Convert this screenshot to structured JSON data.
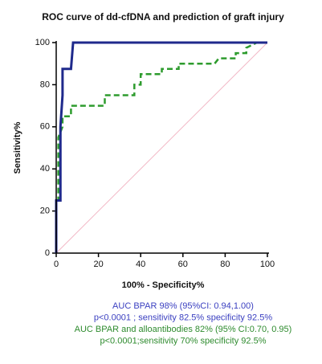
{
  "chart_data": {
    "type": "line",
    "title": "ROC curve of dd-cfDNA and prediction of graft injury",
    "xlabel": "100% - Specificity%",
    "ylabel": "Sensitivity%",
    "xlim": [
      0,
      100
    ],
    "ylim": [
      0,
      100
    ],
    "xticks": [
      0,
      20,
      40,
      60,
      80,
      100
    ],
    "yticks": [
      0,
      20,
      40,
      60,
      80,
      100
    ],
    "series": [
      {
        "color": "#f2b8c6",
        "dash": false,
        "width": 1,
        "x": [
          0,
          100
        ],
        "values": [
          0,
          100
        ]
      },
      {
        "color": "#2e9c2e",
        "dash": true,
        "width": 2.5,
        "x": [
          0,
          0,
          1,
          1,
          3,
          3,
          7,
          7,
          23,
          23,
          37,
          37,
          40,
          40,
          50,
          50,
          58,
          58,
          75,
          77,
          85,
          85,
          90,
          90,
          95,
          100
        ],
        "values": [
          0,
          25,
          25,
          55,
          60,
          65,
          65,
          70,
          70,
          75,
          75,
          80,
          80,
          85,
          85,
          87.5,
          87.5,
          90,
          90,
          92.5,
          92.5,
          95,
          95,
          97.5,
          100,
          100
        ]
      },
      {
        "color": "#1f2a8c",
        "dash": false,
        "width": 3,
        "x": [
          0,
          0,
          2,
          2,
          3,
          3,
          7,
          8,
          100
        ],
        "values": [
          0,
          25,
          25,
          60,
          75,
          87.5,
          87.5,
          100,
          100
        ]
      }
    ],
    "annotations": [
      {
        "text": "AUC  BPAR 98% (95%CI: 0.94,1.00)",
        "color": "#3a3fc0"
      },
      {
        "text": "p<0.0001 ; sensitivity 82.5% specificity 92.5%",
        "color": "#3a3fc0"
      },
      {
        "text": "AUC BPAR and alloantibodies 82% (95% CI:0.70, 0.95)",
        "color": "#2e8b2e"
      },
      {
        "text": "p<0.0001;sensitivity 70%  specificity 92.5%",
        "color": "#2e8b2e"
      }
    ]
  }
}
